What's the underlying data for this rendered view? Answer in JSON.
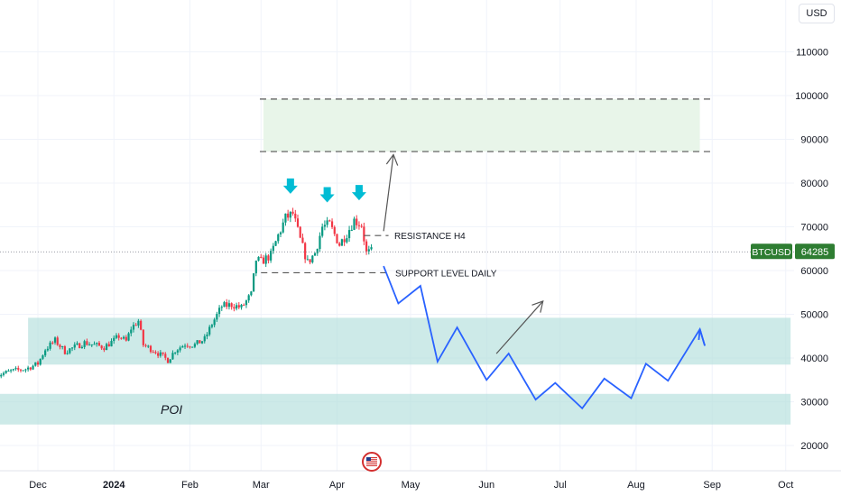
{
  "chart_data": {
    "type": "candlestick",
    "symbol": "BTCUSD",
    "currency": "USD",
    "last_price": 64285,
    "ylim": [
      17000,
      115000
    ],
    "y_ticks": [
      20000,
      30000,
      40000,
      50000,
      60000,
      70000,
      80000,
      90000,
      100000,
      110000
    ],
    "x_ticks": [
      {
        "label": "Dec",
        "date": "2023-12-01"
      },
      {
        "label": "2024",
        "date": "2024-01-01",
        "bold": true
      },
      {
        "label": "Feb",
        "date": "2024-02-01"
      },
      {
        "label": "Mar",
        "date": "2024-03-01"
      },
      {
        "label": "Apr",
        "date": "2024-04-01"
      },
      {
        "label": "May",
        "date": "2024-05-01"
      },
      {
        "label": "Jun",
        "date": "2024-06-01"
      },
      {
        "label": "Jul",
        "date": "2024-07-01"
      },
      {
        "label": "Aug",
        "date": "2024-08-01"
      },
      {
        "label": "Sep",
        "date": "2024-09-01"
      },
      {
        "label": "Oct",
        "date": "2024-10-01"
      }
    ],
    "price_path": [
      [
        "2023-11-14",
        36000
      ],
      [
        "2023-11-20",
        37000
      ],
      [
        "2023-11-26",
        37500
      ],
      [
        "2023-12-01",
        38700
      ],
      [
        "2023-12-04",
        42000
      ],
      [
        "2023-12-08",
        44000
      ],
      [
        "2023-12-12",
        41500
      ],
      [
        "2023-12-16",
        42500
      ],
      [
        "2023-12-20",
        43500
      ],
      [
        "2023-12-24",
        43000
      ],
      [
        "2023-12-28",
        42500
      ],
      [
        "2024-01-01",
        44000
      ],
      [
        "2024-01-03",
        45000
      ],
      [
        "2024-01-06",
        43800
      ],
      [
        "2024-01-08",
        46800
      ],
      [
        "2024-01-11",
        48500
      ],
      [
        "2024-01-13",
        43000
      ],
      [
        "2024-01-18",
        41500
      ],
      [
        "2024-01-23",
        39500
      ],
      [
        "2024-01-26",
        41800
      ],
      [
        "2024-01-30",
        43200
      ],
      [
        "2024-02-03",
        43000
      ],
      [
        "2024-02-07",
        44300
      ],
      [
        "2024-02-10",
        47800
      ],
      [
        "2024-02-14",
        51800
      ],
      [
        "2024-02-18",
        52200
      ],
      [
        "2024-02-22",
        51500
      ],
      [
        "2024-02-26",
        54500
      ],
      [
        "2024-02-28",
        62500
      ],
      [
        "2024-03-01",
        62000
      ],
      [
        "2024-03-05",
        63500
      ],
      [
        "2024-03-08",
        68000
      ],
      [
        "2024-03-11",
        72000
      ],
      [
        "2024-03-14",
        73000
      ],
      [
        "2024-03-17",
        67000
      ],
      [
        "2024-03-20",
        61800
      ],
      [
        "2024-03-23",
        64000
      ],
      [
        "2024-03-26",
        70000
      ],
      [
        "2024-03-29",
        70500
      ],
      [
        "2024-04-02",
        66000
      ],
      [
        "2024-04-05",
        68500
      ],
      [
        "2024-04-08",
        71500
      ],
      [
        "2024-04-11",
        70500
      ],
      [
        "2024-04-13",
        64000
      ],
      [
        "2024-04-15",
        64285
      ]
    ],
    "zones": [
      {
        "name": "upper",
        "from": 87200,
        "to": 99200,
        "start": "2024-03-02",
        "end": "2024-09-02"
      },
      {
        "name": "middle",
        "from": 38500,
        "to": 49200,
        "start": "2023-11-27",
        "end": "2024-10-03"
      },
      {
        "name": "poi",
        "from": 24800,
        "to": 31800,
        "start": "2023-11-01",
        "end": "2024-10-03"
      }
    ],
    "levels": [
      {
        "name": "resistance",
        "price": 68000,
        "start": "2024-04-12",
        "end": "2024-04-22"
      },
      {
        "name": "support",
        "price": 59500,
        "start": "2024-03-01",
        "end": "2024-04-21"
      }
    ],
    "projection_path": [
      [
        "2024-04-20",
        61000
      ],
      [
        "2024-04-26",
        52500
      ],
      [
        "2024-05-05",
        56500
      ],
      [
        "2024-05-12",
        39200
      ],
      [
        "2024-05-20",
        47000
      ],
      [
        "2024-06-01",
        35000
      ],
      [
        "2024-06-10",
        41000
      ],
      [
        "2024-06-21",
        30500
      ],
      [
        "2024-06-29",
        34300
      ],
      [
        "2024-07-10",
        28500
      ],
      [
        "2024-07-19",
        35300
      ],
      [
        "2024-07-30",
        30800
      ],
      [
        "2024-08-05",
        38700
      ],
      [
        "2024-08-14",
        34800
      ],
      [
        "2024-08-27",
        46600
      ],
      [
        "2024-08-29",
        42800
      ]
    ],
    "arrows": [
      {
        "name": "breakout",
        "from": [
          "2024-04-20",
          69000
        ],
        "to": [
          "2024-04-24",
          86500
        ]
      },
      {
        "name": "bounce",
        "from": [
          "2024-06-05",
          41000
        ],
        "to": [
          "2024-06-24",
          53000
        ]
      }
    ],
    "top_markers": [
      {
        "date": "2024-03-13",
        "price": 79000
      },
      {
        "date": "2024-03-28",
        "price": 77000
      },
      {
        "date": "2024-04-10",
        "price": 77500
      }
    ],
    "labels": {
      "resistance": "RESISTANCE H4",
      "support": "SUPPORT LEVEL DAILY",
      "poi": "POI"
    },
    "colors": {
      "up": "#089981",
      "down": "#f23645",
      "zone_upper": "#e8f5e9",
      "zone_teal": "#b2dfdb",
      "projection": "#2962ff",
      "marker": "#00bcd4",
      "price_badge": "#2e7d32",
      "grid": "#f0f3fa"
    }
  },
  "ui": {
    "currency_button": "USD",
    "symbol_badge": "BTCUSD",
    "price_badge": "64285"
  }
}
